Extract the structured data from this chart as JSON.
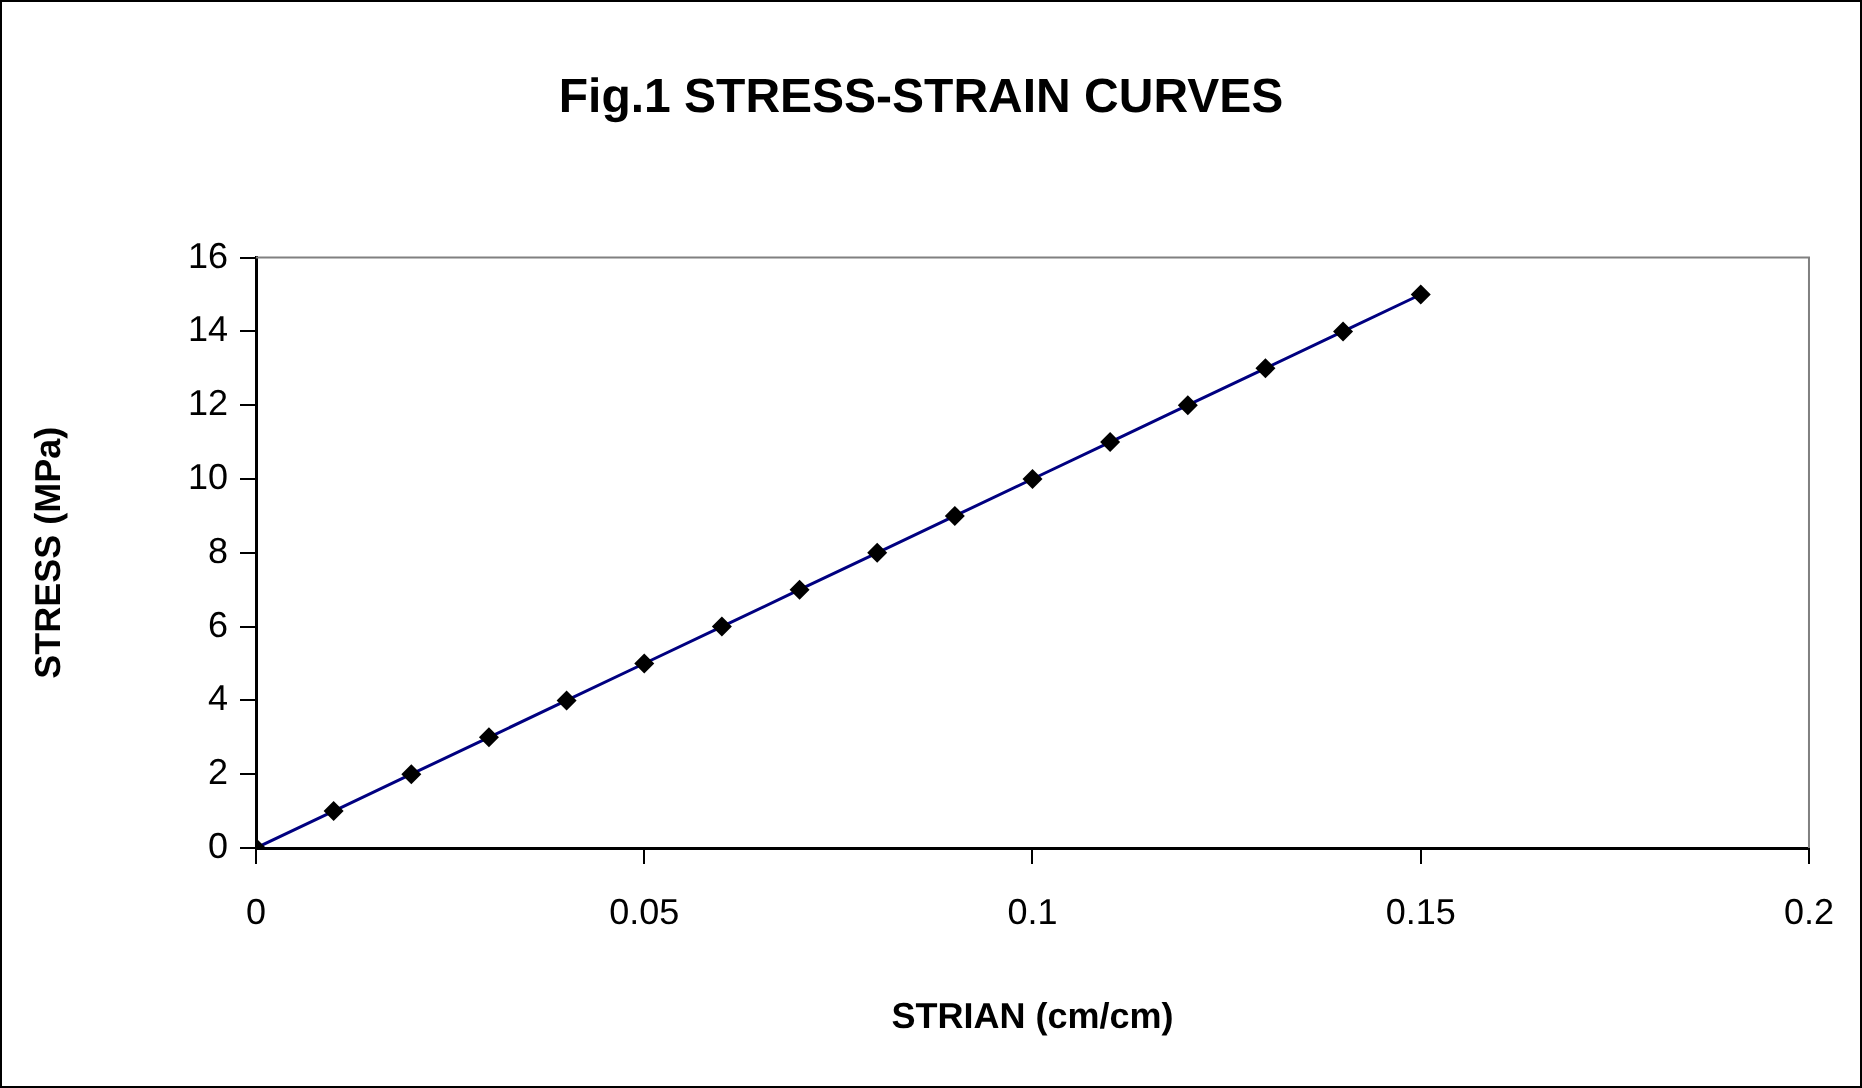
{
  "chart_data": {
    "type": "line",
    "title": "Fig.1 STRESS-STRAIN CURVES",
    "xlabel": "STRIAN (cm/cm)",
    "ylabel": "STRESS (MPa)",
    "x": [
      0,
      0.01,
      0.02,
      0.03,
      0.04,
      0.05,
      0.06,
      0.07,
      0.08,
      0.09,
      0.1,
      0.11,
      0.12,
      0.13,
      0.14,
      0.15
    ],
    "series": [
      {
        "color": "#000080",
        "values": [
          0,
          1,
          2,
          3,
          4,
          5,
          6,
          7,
          8,
          9,
          10,
          11,
          12,
          13,
          14,
          15
        ]
      }
    ],
    "xlim": [
      0,
      0.2
    ],
    "xticks": [
      0,
      0.05,
      0.1,
      0.15,
      0.2
    ],
    "ylim": [
      0,
      16
    ],
    "yticks": [
      0,
      2,
      4,
      6,
      8,
      10,
      12,
      14,
      16
    ],
    "grid": false,
    "legend": false,
    "marker": "diamond",
    "line_style": "solid"
  }
}
